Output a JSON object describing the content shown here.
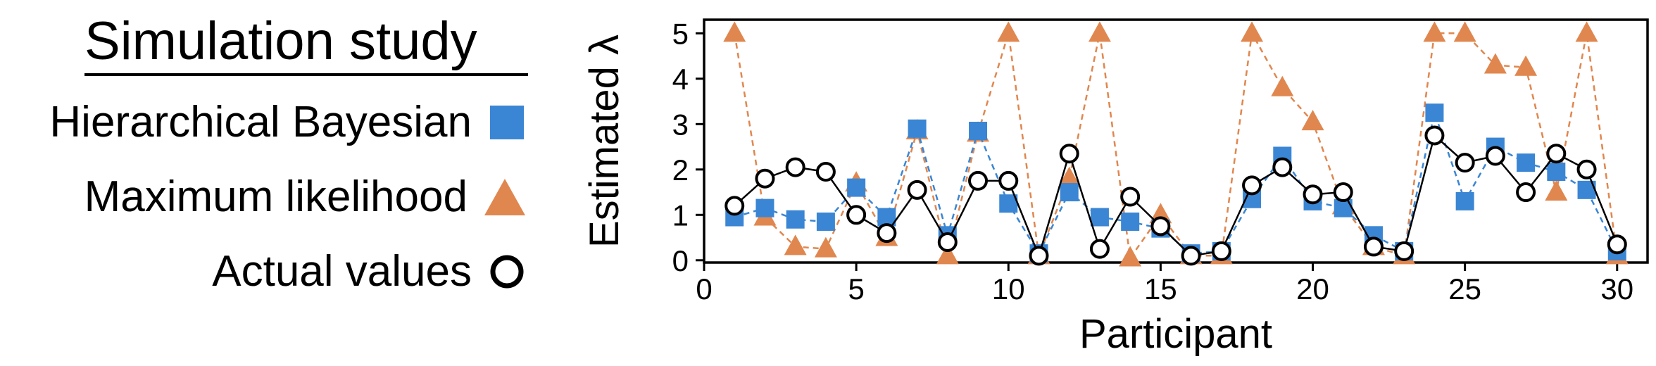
{
  "legend": {
    "title": "Simulation study",
    "items": [
      {
        "label": "Hierarchical Bayesian",
        "marker": "square",
        "color": "#3a86d4"
      },
      {
        "label": "Maximum likelihood",
        "marker": "triangle",
        "color": "#e0874f"
      },
      {
        "label": "Actual values",
        "marker": "circle",
        "color": "#000000"
      }
    ]
  },
  "chart_data": {
    "type": "line",
    "title": "",
    "xlabel": "Participant",
    "ylabel": "Estimated  λ",
    "xlim": [
      0,
      31
    ],
    "ylim": [
      -0.05,
      5.3
    ],
    "xticks": [
      0,
      5,
      10,
      15,
      20,
      25,
      30
    ],
    "yticks": [
      0,
      1,
      2,
      3,
      4,
      5
    ],
    "grid": false,
    "legend_position": "left",
    "x": [
      1,
      2,
      3,
      4,
      5,
      6,
      7,
      8,
      9,
      10,
      11,
      12,
      13,
      14,
      15,
      16,
      17,
      18,
      19,
      20,
      21,
      22,
      23,
      24,
      25,
      26,
      27,
      28,
      29,
      30
    ],
    "series": [
      {
        "name": "Maximum likelihood",
        "color": "#e0874f",
        "marker": "triangle",
        "line": "dashed",
        "values": [
          5.0,
          0.95,
          0.3,
          0.25,
          1.7,
          0.5,
          2.85,
          0.1,
          2.8,
          5.0,
          0.1,
          1.8,
          5.0,
          0.05,
          1.0,
          0.1,
          0.1,
          5.0,
          3.8,
          3.05,
          1.2,
          0.3,
          0.1,
          5.0,
          5.0,
          4.3,
          4.25,
          1.5,
          5.0,
          0.1
        ]
      },
      {
        "name": "Hierarchical Bayesian",
        "color": "#3a86d4",
        "marker": "square",
        "line": "dashed",
        "values": [
          0.95,
          1.15,
          0.9,
          0.85,
          1.6,
          0.95,
          2.9,
          0.55,
          2.85,
          1.25,
          0.15,
          1.5,
          0.95,
          0.85,
          0.7,
          0.15,
          0.2,
          1.35,
          2.3,
          1.3,
          1.15,
          0.55,
          0.2,
          3.25,
          1.3,
          2.5,
          2.15,
          1.95,
          1.55,
          0.2
        ]
      },
      {
        "name": "Actual values",
        "color": "#000000",
        "marker": "circle",
        "line": "solid",
        "values": [
          1.2,
          1.8,
          2.05,
          1.95,
          1.0,
          0.6,
          1.55,
          0.4,
          1.75,
          1.75,
          0.1,
          2.35,
          0.25,
          1.4,
          0.75,
          0.1,
          0.2,
          1.65,
          2.05,
          1.45,
          1.5,
          0.3,
          0.2,
          2.75,
          2.15,
          2.3,
          1.5,
          2.35,
          2.0,
          0.35
        ]
      }
    ]
  }
}
